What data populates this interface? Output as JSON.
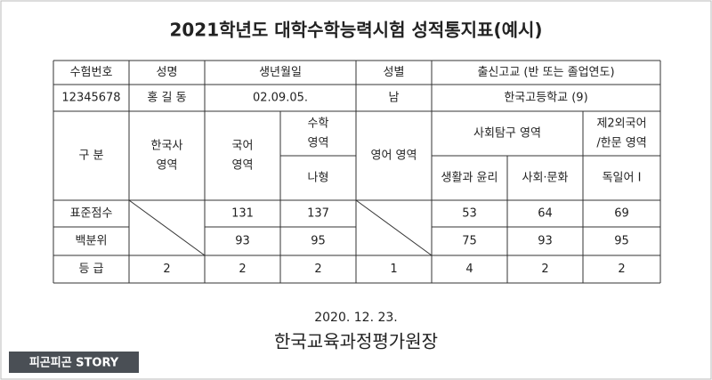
{
  "title": "2021학년도 대학수학능력시험 성적통지표(예시)",
  "table": {
    "info_header": [
      "수험번호",
      "성명",
      "생년월일",
      "성별",
      "출신고교 (반 또는 졸업연도)"
    ],
    "info_row": [
      "12345678",
      "홍 길 동",
      "02.09.05.",
      "남",
      "한국고등학교 (9)"
    ],
    "score_header": {
      "division": "구 분",
      "korean_history": [
        "한국사",
        "영역"
      ],
      "korean": [
        "국어",
        "영역"
      ],
      "math": [
        "수학",
        "영역"
      ],
      "math_type": "나형",
      "english": "영어 영역",
      "social": "사회탐구 영역",
      "social_subjects": [
        "생활과 윤리",
        "사회·문화"
      ],
      "foreign": [
        "제2외국어",
        "/한문 영역"
      ],
      "foreign_subject": "독일어 I"
    },
    "rows": [
      {
        "label": "표준점수",
        "values": [
          131,
          137,
          53,
          64,
          69
        ]
      },
      {
        "label": "백분위",
        "values": [
          93,
          95,
          75,
          93,
          95
        ]
      },
      {
        "label": "등 급",
        "values": [
          2,
          2,
          2,
          1,
          4,
          2,
          2
        ]
      }
    ]
  },
  "date": "2020. 12. 23.",
  "issuer": "한국교육과정평가원장",
  "watermark": "피곤피곤 STORY"
}
